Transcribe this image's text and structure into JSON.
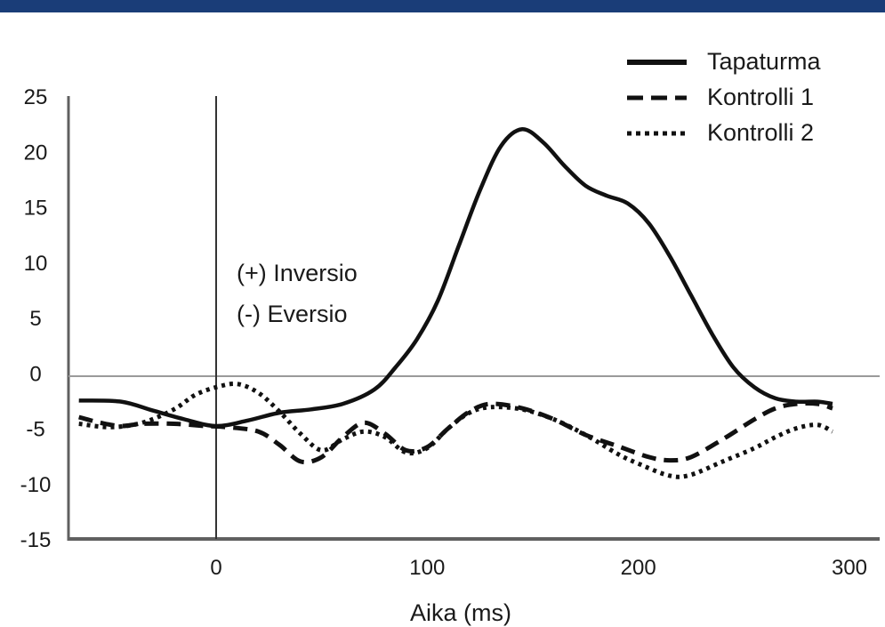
{
  "colors": {
    "header_band": "#1a3d78",
    "axis": "#606060",
    "zero_line": "#9a9a9a",
    "series": "#111111"
  },
  "chart_data": {
    "type": "line",
    "title": "",
    "xlabel": "Aika (ms)",
    "ylabel": "",
    "xlim": [
      -65,
      295
    ],
    "ylim": [
      -15,
      25
    ],
    "x_ticks": [
      0,
      100,
      200,
      300
    ],
    "y_ticks": [
      25,
      20,
      15,
      10,
      5,
      0,
      -5,
      -10,
      -15
    ],
    "grid": false,
    "legend_position": "top-right",
    "annotations": [
      "(+) Inversio",
      "(-) Eversio"
    ],
    "series": [
      {
        "name": "Tapaturma",
        "style": "solid",
        "points": [
          [
            -65,
            -2.5
          ],
          [
            -45,
            -2.6
          ],
          [
            -30,
            -3.4
          ],
          [
            -15,
            -4.2
          ],
          [
            0,
            -4.8
          ],
          [
            15,
            -4.3
          ],
          [
            30,
            -3.6
          ],
          [
            45,
            -3.3
          ],
          [
            60,
            -2.8
          ],
          [
            75,
            -1.5
          ],
          [
            85,
            0.5
          ],
          [
            95,
            3.0
          ],
          [
            105,
            6.5
          ],
          [
            115,
            11.5
          ],
          [
            125,
            16.5
          ],
          [
            135,
            20.5
          ],
          [
            145,
            22.0
          ],
          [
            155,
            20.8
          ],
          [
            165,
            18.7
          ],
          [
            175,
            16.9
          ],
          [
            185,
            16.0
          ],
          [
            195,
            15.3
          ],
          [
            205,
            13.5
          ],
          [
            215,
            10.5
          ],
          [
            225,
            7.0
          ],
          [
            235,
            3.5
          ],
          [
            245,
            0.5
          ],
          [
            255,
            -1.3
          ],
          [
            265,
            -2.3
          ],
          [
            275,
            -2.6
          ],
          [
            285,
            -2.6
          ],
          [
            292,
            -2.8
          ]
        ]
      },
      {
        "name": "Kontrolli 1",
        "style": "dashed",
        "points": [
          [
            -65,
            -4.0
          ],
          [
            -55,
            -4.5
          ],
          [
            -45,
            -4.8
          ],
          [
            -35,
            -4.6
          ],
          [
            -20,
            -4.6
          ],
          [
            -5,
            -4.8
          ],
          [
            5,
            -4.9
          ],
          [
            20,
            -5.3
          ],
          [
            30,
            -6.5
          ],
          [
            40,
            -8.0
          ],
          [
            50,
            -7.6
          ],
          [
            60,
            -5.8
          ],
          [
            70,
            -4.5
          ],
          [
            80,
            -5.5
          ],
          [
            90,
            -7.0
          ],
          [
            100,
            -6.7
          ],
          [
            110,
            -5.0
          ],
          [
            120,
            -3.5
          ],
          [
            130,
            -2.8
          ],
          [
            145,
            -3.2
          ],
          [
            160,
            -4.2
          ],
          [
            175,
            -5.6
          ],
          [
            190,
            -6.6
          ],
          [
            205,
            -7.6
          ],
          [
            215,
            -7.9
          ],
          [
            225,
            -7.6
          ],
          [
            240,
            -6.0
          ],
          [
            255,
            -4.2
          ],
          [
            265,
            -3.2
          ],
          [
            275,
            -2.8
          ],
          [
            285,
            -2.8
          ],
          [
            292,
            -3.2
          ]
        ]
      },
      {
        "name": "Kontrolli 2",
        "style": "dotted",
        "points": [
          [
            -65,
            -4.6
          ],
          [
            -50,
            -4.9
          ],
          [
            -35,
            -4.5
          ],
          [
            -20,
            -3.3
          ],
          [
            -10,
            -2.0
          ],
          [
            0,
            -1.3
          ],
          [
            10,
            -1.0
          ],
          [
            20,
            -1.8
          ],
          [
            30,
            -3.5
          ],
          [
            40,
            -5.5
          ],
          [
            50,
            -7.0
          ],
          [
            60,
            -6.0
          ],
          [
            70,
            -5.3
          ],
          [
            80,
            -5.8
          ],
          [
            90,
            -7.2
          ],
          [
            100,
            -6.8
          ],
          [
            110,
            -5.0
          ],
          [
            120,
            -3.6
          ],
          [
            130,
            -3.1
          ],
          [
            145,
            -3.3
          ],
          [
            160,
            -4.2
          ],
          [
            175,
            -5.6
          ],
          [
            190,
            -7.3
          ],
          [
            200,
            -8.2
          ],
          [
            215,
            -9.3
          ],
          [
            225,
            -9.2
          ],
          [
            240,
            -8.0
          ],
          [
            255,
            -6.8
          ],
          [
            265,
            -5.8
          ],
          [
            275,
            -5.0
          ],
          [
            285,
            -4.7
          ],
          [
            292,
            -5.3
          ]
        ]
      }
    ]
  }
}
